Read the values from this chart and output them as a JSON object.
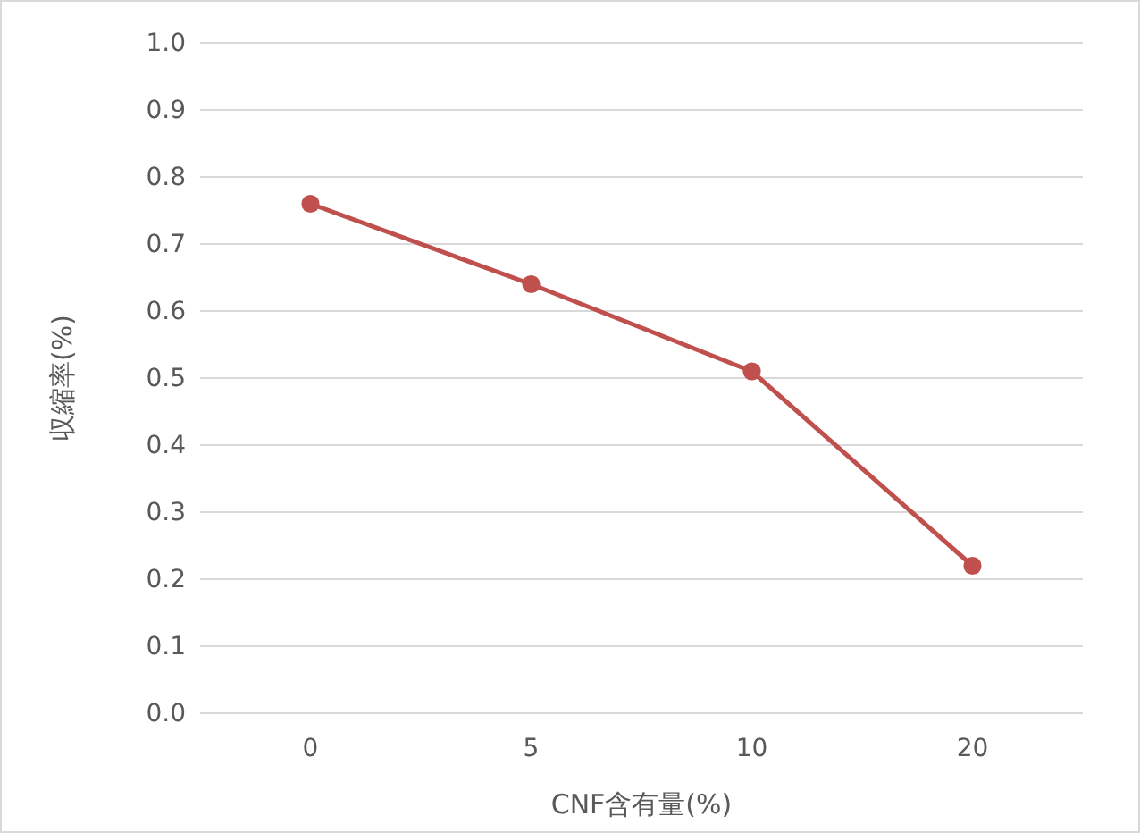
{
  "chart_data": {
    "type": "line",
    "categories": [
      "0",
      "5",
      "10",
      "20"
    ],
    "series": [
      {
        "color": "#c0504d",
        "values": [
          0.76,
          0.64,
          0.51,
          0.22
        ]
      }
    ],
    "xlabel": "CNF含有量(%)",
    "ylabel": "収縮率(%)",
    "ylim": [
      0,
      1.0
    ],
    "yticks": [
      {
        "value": 0,
        "label": "0.0"
      },
      {
        "value": 0.1,
        "label": "0.1"
      },
      {
        "value": 0.2,
        "label": "0.2"
      },
      {
        "value": 0.3,
        "label": "0.3"
      },
      {
        "value": 0.4,
        "label": "0.4"
      },
      {
        "value": 0.5,
        "label": "0.5"
      },
      {
        "value": 0.6,
        "label": "0.6"
      },
      {
        "value": 0.7,
        "label": "0.7"
      },
      {
        "value": 0.8,
        "label": "0.8"
      },
      {
        "value": 0.9,
        "label": "0.9"
      },
      {
        "value": 1.0,
        "label": "1.0"
      }
    ],
    "grid": "y",
    "marker": "circle",
    "line_style": "solid"
  }
}
